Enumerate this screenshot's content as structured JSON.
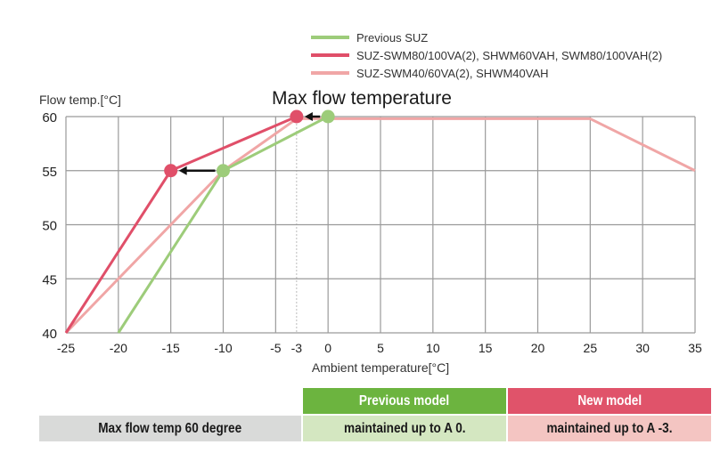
{
  "chart_data": {
    "type": "line",
    "title": "Max flow temperature",
    "xlabel": "Ambient temperature[°C]",
    "ylabel": "Flow temp.[°C]",
    "xlim": [
      -25,
      35
    ],
    "ylim": [
      40,
      60
    ],
    "xticks": [
      -25,
      -20,
      -15,
      -10,
      -5,
      -3,
      0,
      5,
      10,
      15,
      20,
      25,
      30,
      35
    ],
    "xtick_labels": [
      "-25",
      "-20",
      "-15",
      "-10",
      "-5",
      "-3",
      "0",
      "5",
      "10",
      "15",
      "20",
      "25",
      "30",
      "35"
    ],
    "yticks": [
      40,
      45,
      50,
      55,
      60
    ],
    "ytick_labels": [
      "40",
      "45",
      "50",
      "55",
      "60"
    ],
    "grid": true,
    "legend_position": "top-right",
    "series": [
      {
        "name": "SUZ-SWM40/60VA(2), SHWM40VAH",
        "color": "#f0a6a6",
        "points": [
          [
            -25,
            40
          ],
          [
            -10,
            55
          ],
          [
            -3,
            59.8
          ],
          [
            25,
            59.8
          ],
          [
            35,
            55
          ]
        ]
      },
      {
        "name": "Previous SUZ",
        "color": "#9dcc7a",
        "points": [
          [
            -20,
            40
          ],
          [
            -10,
            55
          ],
          [
            0,
            60
          ]
        ]
      },
      {
        "name": "SUZ-SWM80/100VA(2), SHWM60VAH, SWM80/100VAH(2)",
        "color": "#e04f69",
        "points": [
          [
            -25,
            40
          ],
          [
            -15,
            55
          ],
          [
            -3,
            60
          ]
        ]
      }
    ],
    "legend_order": [
      "Previous SUZ",
      "SUZ-SWM80/100VA(2), SHWM60VAH, SWM80/100VAH(2)",
      "SUZ-SWM40/60VA(2), SHWM40VAH"
    ],
    "markers": [
      {
        "series": "Previous SUZ",
        "x": -10,
        "y": 55
      },
      {
        "series": "Previous SUZ",
        "x": 0,
        "y": 60
      },
      {
        "series": "SUZ-SWM80/100VA(2), SHWM60VAH, SWM80/100VAH(2)",
        "x": -15,
        "y": 55
      },
      {
        "series": "SUZ-SWM80/100VA(2), SHWM60VAH, SWM80/100VAH(2)",
        "x": -3,
        "y": 60
      }
    ],
    "arrows": [
      {
        "from": [
          -10,
          55
        ],
        "to": [
          -15,
          55
        ]
      },
      {
        "from": [
          0,
          60
        ],
        "to": [
          -3,
          60
        ]
      }
    ]
  },
  "table": {
    "header_previous": "Previous model",
    "header_new": "New model",
    "row_label": "Max flow temp 60 degree",
    "previous_value": "maintained up to A 0.",
    "new_value": "maintained up to A -3.",
    "colors": {
      "green_header": "#6cb43f",
      "red_header": "#e0536a",
      "gray": "#d9dad9",
      "light_green": "#d4e7c1",
      "light_pink": "#f4c5c2"
    }
  }
}
